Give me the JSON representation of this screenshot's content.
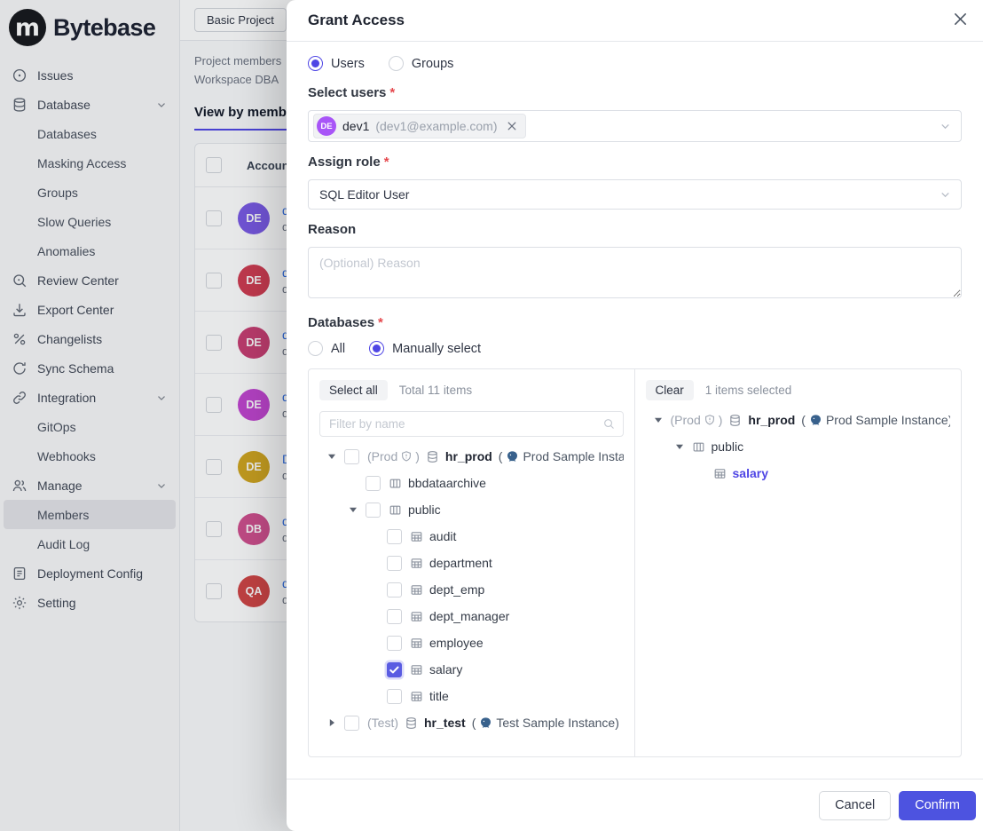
{
  "colors": {
    "accent": "#4f46e5",
    "link": "#2f6be0",
    "pg_blue": "#38618C",
    "confirm": "#4d53e0"
  },
  "sidebar": {
    "logo_text": "Bytebase",
    "items": [
      {
        "label": "Issues",
        "icon": "issues"
      },
      {
        "label": "Database",
        "icon": "database",
        "chevron": true
      },
      {
        "label": "Databases",
        "sub": true
      },
      {
        "label": "Masking Access",
        "sub": true
      },
      {
        "label": "Groups",
        "sub": true
      },
      {
        "label": "Slow Queries",
        "sub": true
      },
      {
        "label": "Anomalies",
        "sub": true
      },
      {
        "label": "Review Center",
        "icon": "review"
      },
      {
        "label": "Export Center",
        "icon": "export"
      },
      {
        "label": "Changelists",
        "icon": "changelists"
      },
      {
        "label": "Sync Schema",
        "icon": "sync"
      },
      {
        "label": "Integration",
        "icon": "integration",
        "chevron": true
      },
      {
        "label": "GitOps",
        "sub": true
      },
      {
        "label": "Webhooks",
        "sub": true
      },
      {
        "label": "Manage",
        "icon": "manage",
        "chevron": true
      },
      {
        "label": "Members",
        "sub": true,
        "active": true
      },
      {
        "label": "Audit Log",
        "sub": true
      },
      {
        "label": "Deployment Config",
        "icon": "deployment"
      },
      {
        "label": "Setting",
        "icon": "setting"
      }
    ]
  },
  "background": {
    "project_tab": "Basic Project",
    "note_line1": "Project members",
    "note_line2": "Workspace DBA",
    "view_tab": "View by members",
    "table": {
      "header": "Account",
      "rows": [
        {
          "initials": "DE",
          "color": "#7A5AE6",
          "link": "dev",
          "sub": "dev"
        },
        {
          "initials": "DE",
          "color": "#D13C51",
          "link": "dev",
          "sub": "dev"
        },
        {
          "initials": "DE",
          "color": "#C93E72",
          "link": "dev",
          "sub": "dev"
        },
        {
          "initials": "DE",
          "color": "#C244D1",
          "link": "dev",
          "sub": "dev"
        },
        {
          "initials": "DE",
          "color": "#D1A51F",
          "link": "De",
          "sub": "dev"
        },
        {
          "initials": "DB",
          "color": "#D14E8E",
          "link": "dba",
          "sub": "dba"
        },
        {
          "initials": "QA",
          "color": "#D14545",
          "link": "qa",
          "sub": "qa"
        }
      ]
    }
  },
  "modal": {
    "title": "Grant Access",
    "member_type": {
      "options": [
        "Users",
        "Groups"
      ],
      "selected": "Users"
    },
    "select_users": {
      "label": "Select users",
      "required": "*",
      "chip": {
        "initials": "DE",
        "name": "dev1",
        "email": "(dev1@example.com)"
      }
    },
    "assign_role": {
      "label": "Assign role",
      "required": "*",
      "value": "SQL Editor User"
    },
    "reason": {
      "label": "Reason",
      "placeholder": "(Optional) Reason"
    },
    "databases": {
      "label": "Databases",
      "required": "*",
      "options": [
        "All",
        "Manually select"
      ],
      "selected": "Manually select"
    },
    "transfer": {
      "source": {
        "select_all": "Select all",
        "total": "Total 11 items",
        "filter_placeholder": "Filter by name",
        "tree": [
          {
            "indent": 0,
            "caret": "down",
            "checkbox": "unchecked",
            "env": "(Prod",
            "shield": true,
            "icon": "db",
            "name": "hr_prod",
            "bold": true,
            "instance": "Prod Sample Instance)"
          },
          {
            "indent": 1,
            "checkbox": "unchecked",
            "icon": "schema",
            "name": "bbdataarchive"
          },
          {
            "indent": 1,
            "caret": "down",
            "checkbox": "unchecked",
            "icon": "schema",
            "name": "public"
          },
          {
            "indent": 2,
            "checkbox": "unchecked",
            "icon": "table",
            "name": "audit"
          },
          {
            "indent": 2,
            "checkbox": "unchecked",
            "icon": "table",
            "name": "department"
          },
          {
            "indent": 2,
            "checkbox": "unchecked",
            "icon": "table",
            "name": "dept_emp"
          },
          {
            "indent": 2,
            "checkbox": "unchecked",
            "icon": "table",
            "name": "dept_manager"
          },
          {
            "indent": 2,
            "checkbox": "unchecked",
            "icon": "table",
            "name": "employee"
          },
          {
            "indent": 2,
            "checkbox": "checked",
            "icon": "table",
            "name": "salary"
          },
          {
            "indent": 2,
            "checkbox": "unchecked",
            "icon": "table",
            "name": "title"
          },
          {
            "indent": 0,
            "caret": "right",
            "checkbox": "unchecked",
            "env": "(Test)",
            "shield": false,
            "icon": "db",
            "name": "hr_test",
            "bold": true,
            "instance": "Test Sample Instance)"
          }
        ]
      },
      "target": {
        "clear": "Clear",
        "selected_count": "1 items selected",
        "tree": [
          {
            "indent": 0,
            "caret": "down",
            "env": "(Prod",
            "shield": true,
            "icon": "db",
            "name": "hr_prod",
            "bold": true,
            "instance": "Prod Sample Instance)"
          },
          {
            "indent": 1,
            "caret": "down",
            "icon": "schema",
            "name": "public"
          },
          {
            "indent": 2,
            "icon": "table",
            "name": "salary",
            "selected": true
          }
        ]
      }
    },
    "footer": {
      "cancel": "Cancel",
      "confirm": "Confirm"
    }
  }
}
